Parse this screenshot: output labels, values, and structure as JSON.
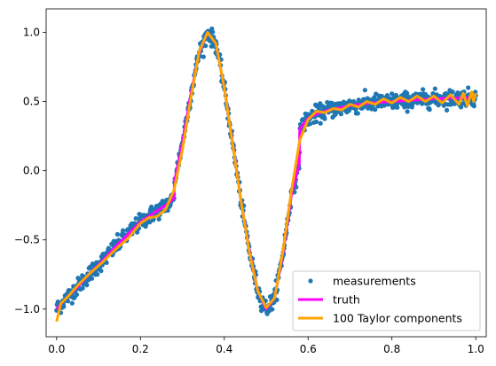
{
  "chart_data": {
    "type": "line",
    "title": "",
    "xlabel": "",
    "ylabel": "",
    "xlim": [
      -0.025,
      1.025
    ],
    "ylim": [
      -1.2,
      1.17
    ],
    "xticks": [
      0.0,
      0.2,
      0.4,
      0.6,
      0.8,
      1.0
    ],
    "xtick_labels": [
      "0.0",
      "0.2",
      "0.4",
      "0.6",
      "0.8",
      "1.0"
    ],
    "yticks": [
      -1.0,
      -0.5,
      0.0,
      0.5,
      1.0
    ],
    "ytick_labels": [
      "−1.0",
      "−0.5",
      "0.0",
      "0.5",
      "1.0"
    ],
    "grid": false,
    "legend_position": "bottom-right",
    "series": [
      {
        "name": "measurements",
        "kind": "scatter",
        "color": "#1f77b4",
        "count": 1000,
        "noise_sd": 0.03
      },
      {
        "name": "truth",
        "kind": "line",
        "color": "#ff00ff",
        "x": [
          0.0,
          0.02,
          0.05,
          0.08,
          0.11,
          0.14,
          0.17,
          0.2,
          0.23,
          0.26,
          0.28,
          0.281,
          0.3,
          0.32,
          0.34,
          0.36,
          0.38,
          0.4,
          0.42,
          0.44,
          0.46,
          0.48,
          0.5,
          0.52,
          0.54,
          0.56,
          0.579,
          0.58,
          0.6,
          0.62,
          0.65,
          0.7,
          0.75,
          0.8,
          0.85,
          0.9,
          0.95,
          1.0
        ],
        "y": [
          -1.0,
          -0.93,
          -0.84,
          -0.74,
          -0.65,
          -0.55,
          -0.46,
          -0.37,
          -0.31,
          -0.25,
          -0.2,
          -0.08,
          0.2,
          0.55,
          0.85,
          1.0,
          0.92,
          0.6,
          0.2,
          -0.22,
          -0.58,
          -0.87,
          -1.0,
          -0.92,
          -0.6,
          -0.18,
          0.05,
          0.3,
          0.38,
          0.41,
          0.44,
          0.47,
          0.49,
          0.5,
          0.51,
          0.52,
          0.525,
          0.53
        ]
      },
      {
        "name": "100 Taylor components",
        "kind": "line",
        "color": "#ffa500",
        "x": [
          0.0,
          0.01,
          0.03,
          0.05,
          0.08,
          0.11,
          0.14,
          0.17,
          0.2,
          0.22,
          0.24,
          0.26,
          0.28,
          0.3,
          0.32,
          0.34,
          0.36,
          0.38,
          0.4,
          0.42,
          0.44,
          0.46,
          0.48,
          0.5,
          0.52,
          0.54,
          0.56,
          0.58,
          0.6,
          0.62,
          0.64,
          0.66,
          0.68,
          0.7,
          0.72,
          0.74,
          0.76,
          0.78,
          0.8,
          0.82,
          0.84,
          0.86,
          0.88,
          0.9,
          0.92,
          0.94,
          0.96,
          0.97,
          0.98,
          0.99,
          0.995,
          1.0
        ],
        "y": [
          -1.09,
          -0.96,
          -0.9,
          -0.83,
          -0.74,
          -0.66,
          -0.57,
          -0.49,
          -0.38,
          -0.34,
          -0.33,
          -0.28,
          -0.14,
          0.15,
          0.52,
          0.86,
          1.0,
          0.92,
          0.6,
          0.19,
          -0.22,
          -0.59,
          -0.87,
          -0.99,
          -0.92,
          -0.58,
          -0.15,
          0.22,
          0.37,
          0.43,
          0.42,
          0.45,
          0.44,
          0.48,
          0.46,
          0.5,
          0.48,
          0.52,
          0.49,
          0.53,
          0.5,
          0.54,
          0.5,
          0.54,
          0.49,
          0.55,
          0.48,
          0.56,
          0.47,
          0.57,
          0.5,
          0.56
        ]
      }
    ]
  }
}
